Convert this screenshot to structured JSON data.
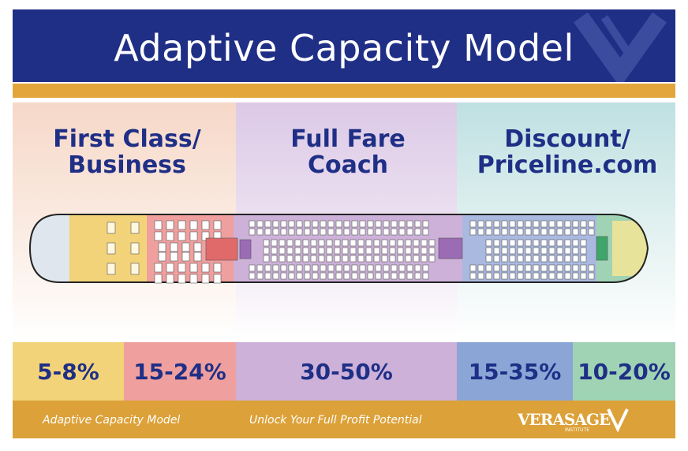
{
  "header": {
    "title": "Adaptive Capacity Model"
  },
  "sections": [
    {
      "title_line1": "First Class/",
      "title_line2": "Business"
    },
    {
      "title_line1": "Full Fare",
      "title_line2": "Coach"
    },
    {
      "title_line1": "Discount/",
      "title_line2": "Priceline.com"
    }
  ],
  "percentages": [
    "5-8%",
    "15-24%",
    "30-50%",
    "15-35%",
    "10-20%"
  ],
  "footer": {
    "left": "Adaptive Capacity Model",
    "center": "Unlock Your Full Profit Potential",
    "logo": "VERASAGE",
    "logo_sub": "INSTITUTE"
  },
  "colors": {
    "navy": "#1f2f86",
    "gold": "#e3a63a",
    "first_class": "#f2d37a",
    "business": "#ef9f9e",
    "full_fare": "#cdb1d9",
    "discount": "#8ba6d6",
    "priceline": "#9fd3b4"
  }
}
